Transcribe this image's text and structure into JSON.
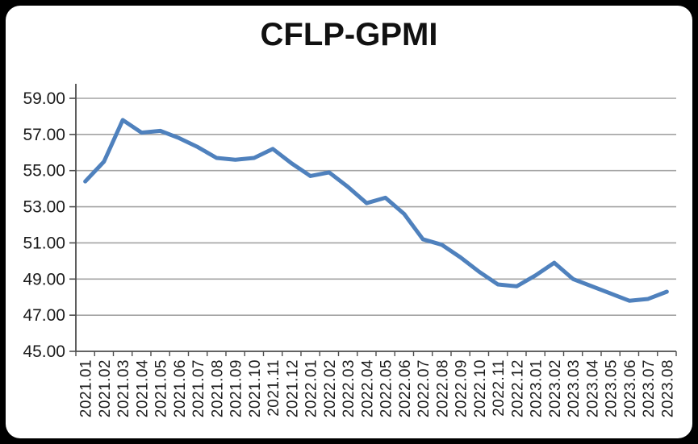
{
  "window": {
    "background_color": "#000000",
    "card_color": "#ffffff"
  },
  "chart_data": {
    "type": "line",
    "title": "CFLP-GPMI",
    "xlabel": "",
    "ylabel": "",
    "categories": [
      "2021.01",
      "2021.02",
      "2021.03",
      "2021.04",
      "2021.05",
      "2021.06",
      "2021.07",
      "2021.08",
      "2021.09",
      "2021.10",
      "2021.11",
      "2021.12",
      "2022.01",
      "2022.02",
      "2022.03",
      "2022.04",
      "2022.05",
      "2022.06",
      "2022.07",
      "2022.08",
      "2022.09",
      "2022.10",
      "2022.11",
      "2022.12",
      "2023.01",
      "2023.02",
      "2023.03",
      "2023.04",
      "2023.05",
      "2023.06",
      "2023.07",
      "2023.08"
    ],
    "series": [
      {
        "name": "CFLP-GPMI",
        "values": [
          54.4,
          55.5,
          57.8,
          57.1,
          57.2,
          56.8,
          56.3,
          55.7,
          55.6,
          55.7,
          56.2,
          55.4,
          54.7,
          54.9,
          54.1,
          53.2,
          53.5,
          52.6,
          51.2,
          50.9,
          50.2,
          49.4,
          48.7,
          48.6,
          49.2,
          49.9,
          49.0,
          48.6,
          48.2,
          47.8,
          47.9,
          48.3
        ]
      }
    ],
    "ylim": [
      45,
      59
    ],
    "yticks": [
      {
        "value": 45,
        "label": "45.00"
      },
      {
        "value": 47,
        "label": "47.00"
      },
      {
        "value": 49,
        "label": "49.00"
      },
      {
        "value": 51,
        "label": "51.00"
      },
      {
        "value": 53,
        "label": "53.00"
      },
      {
        "value": 55,
        "label": "55.00"
      },
      {
        "value": 57,
        "label": "57.00"
      },
      {
        "value": 59,
        "label": "59.00"
      }
    ],
    "grid": "horizontal",
    "legend": "none",
    "line_color": "#4F81BD",
    "gridline_color": "#a3a3a3",
    "axis_color": "#4d4d4d",
    "label_color": "#1a1a1a"
  }
}
